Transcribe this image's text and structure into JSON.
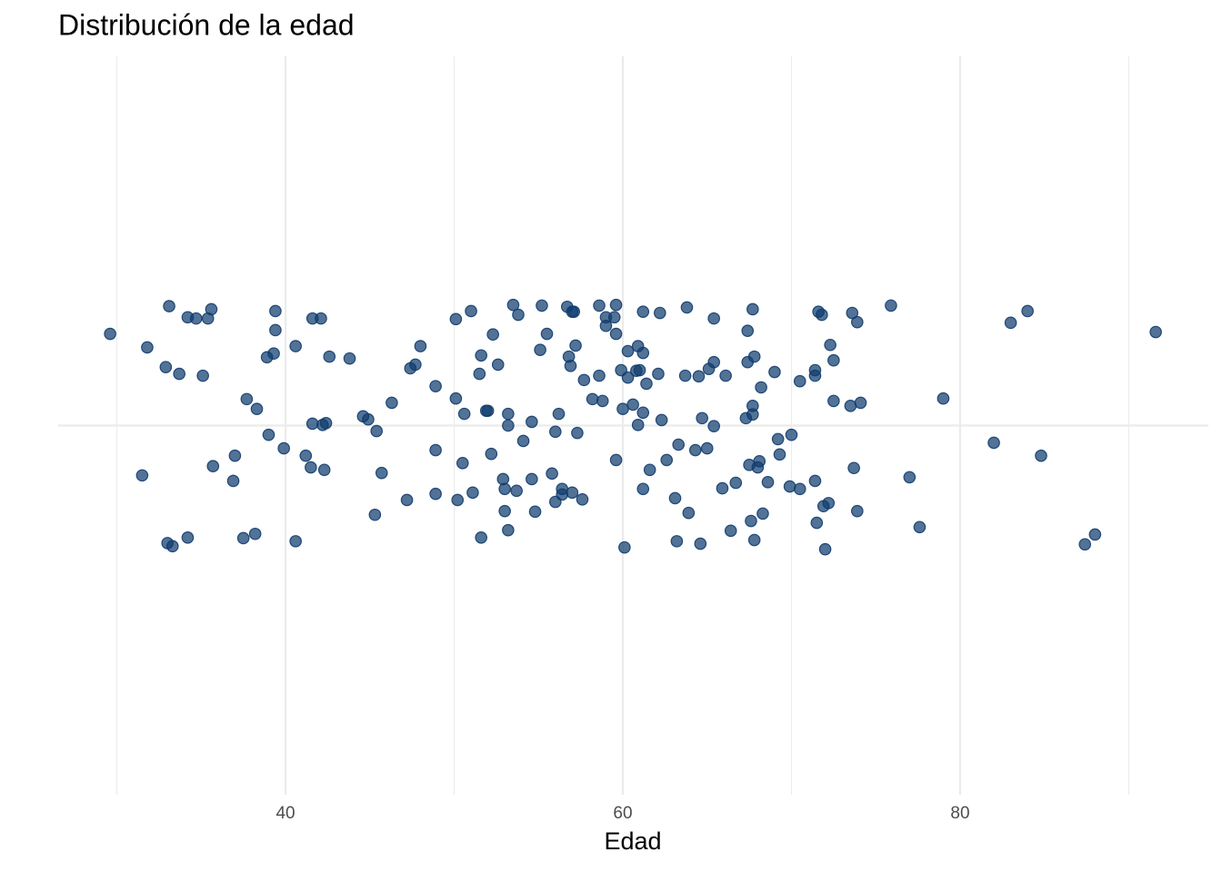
{
  "chart_data": {
    "type": "scatter",
    "title": "Distribución de la edad",
    "x_label": "Edad",
    "color": "#0f3c6e",
    "opacity": 0.72,
    "xlim": [
      26.52,
      94.72
    ],
    "xticks": [
      40,
      60,
      80
    ],
    "xminor": [
      30,
      50,
      70,
      90
    ],
    "ylim": [
      -0.6,
      0.6
    ],
    "yticks": [
      {
        "value": 0,
        "label": null
      }
    ],
    "grid": true,
    "x": [
      29.6,
      31.8,
      33.1,
      34.2,
      34.7,
      35.4,
      35.6,
      32.9,
      33.7,
      35.1,
      31.5,
      33.0,
      33.3,
      34.2,
      35.7,
      36.9,
      37.0,
      37.5,
      38.2,
      37.7,
      38.3,
      39.0,
      39.4,
      39.4,
      39.3,
      38.9,
      39.9,
      40.6,
      40.6,
      41.2,
      41.5,
      41.6,
      42.1,
      41.6,
      42.2,
      42.4,
      42.3,
      42.6,
      43.8,
      44.6,
      44.9,
      45.4,
      45.7,
      45.3,
      46.3,
      47.2,
      47.4,
      47.7,
      48.0,
      48.9,
      48.9,
      48.9,
      50.1,
      51.0,
      50.1,
      50.6,
      50.5,
      50.2,
      51.1,
      51.6,
      51.5,
      51.9,
      52.0,
      52.3,
      52.6,
      52.2,
      51.6,
      52.9,
      53.0,
      53.0,
      53.2,
      53.2,
      53.2,
      53.5,
      53.8,
      53.7,
      54.1,
      54.6,
      54.6,
      54.8,
      55.1,
      55.2,
      55.5,
      55.8,
      56.0,
      56.0,
      56.2,
      56.4,
      56.4,
      56.7,
      56.8,
      56.9,
      57.0,
      57.1,
      57.2,
      57.0,
      57.3,
      57.6,
      57.7,
      58.2,
      58.6,
      58.6,
      58.8,
      59.0,
      59.0,
      59.5,
      59.6,
      59.6,
      59.6,
      59.9,
      60.0,
      60.1,
      60.3,
      60.3,
      60.6,
      60.8,
      60.9,
      61.0,
      60.9,
      61.2,
      61.2,
      61.2,
      61.2,
      61.4,
      61.6,
      62.1,
      62.2,
      62.3,
      62.6,
      63.1,
      63.2,
      63.3,
      63.7,
      63.8,
      63.9,
      64.3,
      64.5,
      64.7,
      64.6,
      65.0,
      65.1,
      65.4,
      65.4,
      65.4,
      65.9,
      66.1,
      66.4,
      66.7,
      67.3,
      67.4,
      67.4,
      67.5,
      67.6,
      67.7,
      67.7,
      67.7,
      67.8,
      67.8,
      68.0,
      68.1,
      68.2,
      68.3,
      68.6,
      69.0,
      69.3,
      69.2,
      69.9,
      70.0,
      70.5,
      70.5,
      71.4,
      71.4,
      71.4,
      71.5,
      71.6,
      71.8,
      71.9,
      72.0,
      72.2,
      72.3,
      72.5,
      72.5,
      73.5,
      73.6,
      73.9,
      73.7,
      73.9,
      74.1,
      75.9,
      77.0,
      77.6,
      79.0,
      82.0,
      83.0,
      84.0,
      84.8,
      87.4,
      88.0,
      91.6
    ],
    "values": [
      0.149,
      0.127,
      0.194,
      0.176,
      0.174,
      0.174,
      0.189,
      0.095,
      0.084,
      0.081,
      -0.081,
      -0.191,
      -0.196,
      -0.182,
      -0.066,
      -0.09,
      -0.049,
      -0.183,
      -0.176,
      0.043,
      0.027,
      -0.015,
      0.186,
      0.155,
      0.117,
      0.111,
      -0.037,
      -0.188,
      0.129,
      -0.049,
      -0.068,
      0.174,
      0.174,
      0.003,
      0.001,
      0.004,
      -0.072,
      0.112,
      0.109,
      0.015,
      0.01,
      -0.009,
      -0.077,
      -0.145,
      0.037,
      -0.121,
      0.093,
      0.099,
      0.129,
      0.064,
      -0.04,
      -0.111,
      0.173,
      0.186,
      0.044,
      0.019,
      -0.061,
      -0.121,
      -0.109,
      0.114,
      0.084,
      0.024,
      0.024,
      0.148,
      0.099,
      -0.046,
      -0.182,
      -0.087,
      -0.103,
      -0.139,
      -0.17,
      0.019,
      0.0,
      0.196,
      0.18,
      -0.106,
      -0.025,
      -0.087,
      0.006,
      -0.14,
      0.123,
      0.195,
      0.149,
      -0.078,
      -0.124,
      -0.01,
      0.019,
      -0.103,
      -0.112,
      0.193,
      0.112,
      0.097,
      0.185,
      0.185,
      0.13,
      -0.109,
      -0.012,
      -0.12,
      0.074,
      0.043,
      0.081,
      0.195,
      0.04,
      0.176,
      0.162,
      0.176,
      0.196,
      0.149,
      -0.056,
      0.09,
      0.027,
      -0.198,
      0.121,
      0.078,
      0.034,
      0.089,
      0.129,
      0.09,
      0.001,
      0.118,
      0.185,
      0.021,
      -0.103,
      0.068,
      -0.072,
      0.084,
      0.183,
      0.009,
      -0.056,
      -0.118,
      -0.188,
      -0.031,
      0.081,
      0.192,
      -0.142,
      -0.04,
      0.08,
      0.012,
      -0.192,
      -0.037,
      0.092,
      -0.001,
      0.103,
      0.174,
      -0.102,
      0.081,
      -0.171,
      -0.093,
      0.012,
      0.103,
      0.154,
      -0.064,
      -0.155,
      0.032,
      0.018,
      0.189,
      0.112,
      -0.186,
      -0.068,
      -0.058,
      0.062,
      -0.143,
      -0.092,
      0.087,
      -0.047,
      -0.022,
      -0.099,
      -0.015,
      0.072,
      -0.103,
      0.081,
      0.09,
      -0.09,
      -0.158,
      0.185,
      0.18,
      -0.131,
      -0.201,
      -0.126,
      0.131,
      0.04,
      0.106,
      0.032,
      0.183,
      0.168,
      -0.069,
      -0.139,
      0.037,
      0.195,
      -0.084,
      -0.165,
      0.044,
      -0.028,
      0.167,
      0.186,
      -0.049,
      -0.193,
      -0.177,
      0.152
    ]
  }
}
